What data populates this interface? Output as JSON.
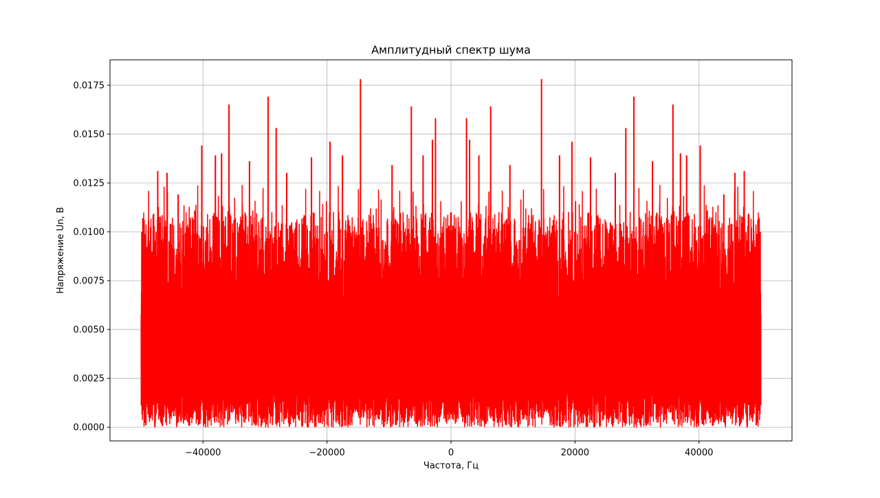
{
  "colors": {
    "background": "#ffffff",
    "series": "#ff0000",
    "grid": "#b0b0b0",
    "axis": "#000000"
  },
  "chart_data": {
    "type": "line",
    "title": "Амплитудный спектр шума",
    "xlabel": "Частота, Гц",
    "ylabel": "Напряжение Un, В",
    "xlim": [
      -55000,
      55000
    ],
    "ylim": [
      -0.0007,
      0.0188
    ],
    "x_ticks": [
      -40000,
      -20000,
      0,
      20000,
      40000
    ],
    "x_tick_labels": [
      "−40000",
      "−20000",
      "0",
      "20000",
      "40000"
    ],
    "y_ticks": [
      0.0,
      0.0025,
      0.005,
      0.0075,
      0.01,
      0.0125,
      0.015,
      0.0175
    ],
    "y_tick_labels": [
      "0.0000",
      "0.0025",
      "0.0050",
      "0.0075",
      "0.0100",
      "0.0125",
      "0.0150",
      "0.0175"
    ],
    "grid": true,
    "legend": "none",
    "series": [
      {
        "x_range": [
          -50000,
          50000
        ],
        "symmetric_about_zero": true,
        "approx_min": 0.0,
        "approx_max": 0.0178,
        "peaks": [
          {
            "x": -49500,
            "y": 0.0106
          },
          {
            "x": -47300,
            "y": 0.0131
          },
          {
            "x": -45800,
            "y": 0.013
          },
          {
            "x": -44000,
            "y": 0.0119
          },
          {
            "x": -40200,
            "y": 0.0144
          },
          {
            "x": -38000,
            "y": 0.0139
          },
          {
            "x": -37000,
            "y": 0.014
          },
          {
            "x": -35800,
            "y": 0.0165
          },
          {
            "x": -32500,
            "y": 0.0136
          },
          {
            "x": -29500,
            "y": 0.0169
          },
          {
            "x": -28200,
            "y": 0.0153
          },
          {
            "x": -26500,
            "y": 0.013
          },
          {
            "x": -22500,
            "y": 0.0138
          },
          {
            "x": -19500,
            "y": 0.0146
          },
          {
            "x": -17500,
            "y": 0.0139
          },
          {
            "x": -14600,
            "y": 0.0178
          },
          {
            "x": -9500,
            "y": 0.0134
          },
          {
            "x": -6400,
            "y": 0.0164
          },
          {
            "x": -4500,
            "y": 0.0139
          },
          {
            "x": -3000,
            "y": 0.0147
          },
          {
            "x": -2500,
            "y": 0.0158
          },
          {
            "x": 2500,
            "y": 0.0158
          },
          {
            "x": 3000,
            "y": 0.0147
          },
          {
            "x": 4500,
            "y": 0.0139
          },
          {
            "x": 6400,
            "y": 0.0164
          },
          {
            "x": 9500,
            "y": 0.0134
          },
          {
            "x": 14600,
            "y": 0.0178
          },
          {
            "x": 17500,
            "y": 0.0139
          },
          {
            "x": 19500,
            "y": 0.0146
          },
          {
            "x": 22500,
            "y": 0.0138
          },
          {
            "x": 26500,
            "y": 0.013
          },
          {
            "x": 28200,
            "y": 0.0153
          },
          {
            "x": 29500,
            "y": 0.0169
          },
          {
            "x": 32500,
            "y": 0.0136
          },
          {
            "x": 35800,
            "y": 0.0165
          },
          {
            "x": 37000,
            "y": 0.014
          },
          {
            "x": 38000,
            "y": 0.0139
          },
          {
            "x": 40200,
            "y": 0.0144
          },
          {
            "x": 44000,
            "y": 0.0119
          },
          {
            "x": 45800,
            "y": 0.013
          },
          {
            "x": 47300,
            "y": 0.0131
          },
          {
            "x": 49500,
            "y": 0.0106
          }
        ]
      }
    ]
  }
}
